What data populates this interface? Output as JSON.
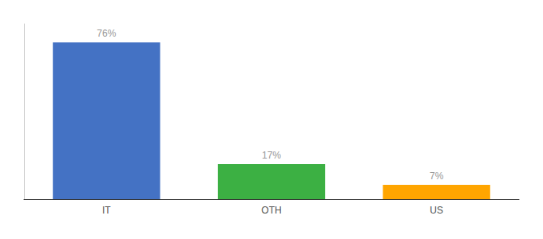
{
  "chart_data": {
    "type": "bar",
    "categories": [
      "IT",
      "OTH",
      "US"
    ],
    "values": [
      76,
      17,
      7
    ],
    "value_labels": [
      "76%",
      "17%",
      "7%"
    ],
    "data_labels": true,
    "colors": [
      "#4472C4",
      "#3CB043",
      "#FFA500"
    ],
    "ylim": [
      0,
      85
    ],
    "grid": false,
    "tick_labels": "x"
  }
}
